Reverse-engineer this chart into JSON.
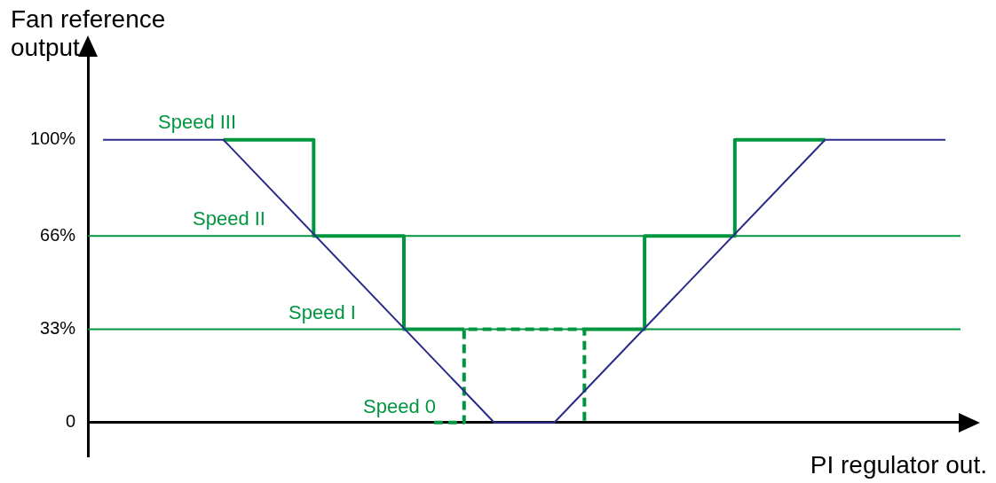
{
  "chart_data": {
    "type": "line",
    "xlabel": "PI regulator out.",
    "ylabel": "Fan reference output",
    "categories": [
      null,
      null,
      null,
      null,
      null,
      null,
      null,
      null,
      null,
      null,
      null,
      null,
      null,
      null,
      null,
      null,
      null,
      null,
      null,
      null,
      null,
      null,
      null,
      null,
      null,
      null,
      null,
      null,
      null
    ],
    "ylim": [
      -12,
      130
    ],
    "yticks": [
      {
        "value": 0,
        "label": "0"
      },
      {
        "value": 33,
        "label": "33%"
      },
      {
        "value": 66,
        "label": "66%"
      },
      {
        "value": 100,
        "label": "100%"
      }
    ],
    "tick_labels": "y",
    "legend": false,
    "series": [
      {
        "color": "#2b2b8a",
        "values": [
          100,
          null,
          null,
          null,
          100,
          null,
          null,
          null,
          null,
          null,
          null,
          null,
          null,
          0,
          null,
          0,
          null,
          null,
          null,
          null,
          null,
          null,
          null,
          null,
          100,
          null,
          null,
          null,
          100
        ]
      },
      {
        "type": "step",
        "color": "#009640",
        "values": [
          null,
          null,
          null,
          null,
          100,
          null,
          null,
          66,
          null,
          null,
          33,
          null,
          33,
          null,
          null,
          null,
          null,
          null,
          null,
          null,
          null,
          null,
          null,
          null,
          null,
          null,
          null,
          null,
          null
        ]
      },
      {
        "type": "step",
        "color": "#009640",
        "line_style": "dashed",
        "values": [
          null,
          null,
          null,
          null,
          null,
          null,
          null,
          null,
          null,
          null,
          null,
          0,
          33,
          null,
          null,
          null,
          0,
          null,
          null,
          null,
          null,
          null,
          null,
          null,
          null,
          null,
          null,
          null,
          null
        ]
      },
      {
        "type": "step",
        "color": "#009640",
        "values": [
          null,
          null,
          null,
          null,
          null,
          null,
          null,
          null,
          null,
          null,
          null,
          null,
          null,
          null,
          null,
          null,
          33,
          null,
          66,
          null,
          null,
          100,
          null,
          null,
          100,
          null,
          null,
          null,
          null
        ]
      }
    ],
    "ref_lines": [
      {
        "axis": "y",
        "value": 66,
        "color": "#009640"
      },
      {
        "axis": "y",
        "value": 33,
        "color": "#009640"
      }
    ],
    "annotations": [
      "Speed III",
      "Speed II",
      "Speed I",
      "Speed 0"
    ]
  }
}
